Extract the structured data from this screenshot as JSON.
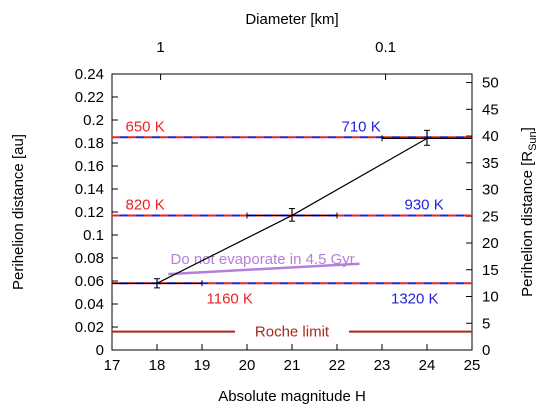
{
  "chart_data": {
    "type": "line",
    "title": "",
    "xlabel": "Absolute magnitude H",
    "ylabel": "Perihelion distance [au]",
    "x2label": "Diameter [km]",
    "y2label_main": "Perihelion distance [R",
    "y2label_sub": "Sun",
    "y2label_close": "]",
    "xlim": [
      17,
      25
    ],
    "ylim": [
      0,
      0.24
    ],
    "y2lim": [
      0,
      51.6
    ],
    "grid": false,
    "legend": "none",
    "x_ticks": [
      17,
      18,
      19,
      20,
      21,
      22,
      23,
      24,
      25
    ],
    "y_ticks": [
      0,
      0.02,
      0.04,
      0.06,
      0.08,
      0.1,
      0.12,
      0.14,
      0.16,
      0.18,
      0.2,
      0.22,
      0.24
    ],
    "y_tick_labels": [
      "0",
      "0.02",
      "0.04",
      "0.06",
      "0.08",
      "0.1",
      "0.12",
      "0.14",
      "0.16",
      "0.18",
      "0.2",
      "0.22",
      "0.24"
    ],
    "y2_ticks": [
      0,
      5,
      10,
      15,
      20,
      25,
      30,
      35,
      40,
      45,
      50
    ],
    "x2_ticks": [
      {
        "label": "1",
        "h": 18.08
      },
      {
        "label": "0.1",
        "h": 23.08
      }
    ],
    "series": [
      {
        "points": [
          {
            "x": 18,
            "y": 0.058,
            "xerr": [
              17,
              19
            ],
            "yerr": [
              0.054,
              0.062
            ]
          },
          {
            "x": 21,
            "y": 0.117,
            "xerr": [
              20,
              22
            ],
            "yerr": [
              0.112,
              0.123
            ]
          },
          {
            "x": 24,
            "y": 0.184,
            "xerr": [
              23,
              25
            ],
            "yerr": [
              0.178,
              0.191
            ]
          }
        ]
      }
    ],
    "temperature_lines": [
      {
        "y": 0.185,
        "left_label": "650 K",
        "right_label": "710 K",
        "left_label_x": 17.3,
        "right_label_x": 22.1
      },
      {
        "y": 0.117,
        "left_label": "820 K",
        "right_label": "930 K",
        "left_label_x": 17.3,
        "right_label_x": 23.5
      },
      {
        "y": 0.058,
        "left_label": "1160 K",
        "right_label": "1320 K",
        "left_label_x": 19.1,
        "right_label_x": 23.2
      }
    ],
    "evaporation_line": {
      "label": "Do not   evaporate in 4.5 Gyr",
      "x": [
        18.25,
        22.5
      ],
      "y": [
        0.066,
        0.075
      ],
      "color": "#b57fd9"
    },
    "roche_limit": {
      "label": "Roche limit",
      "y": 0.016,
      "color": "#a52a1a"
    },
    "colors": {
      "red": "#ee2222",
      "blue": "#2222dd",
      "black": "#000000"
    }
  }
}
